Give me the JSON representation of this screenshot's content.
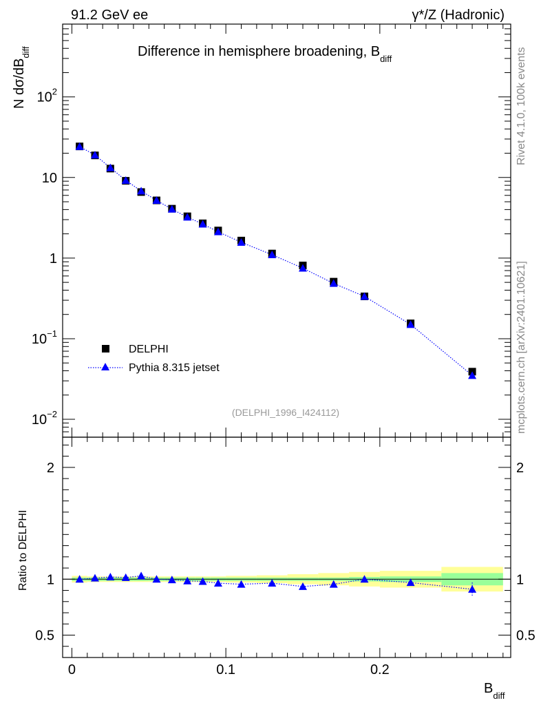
{
  "header": {
    "left": "91.2 GeV ee",
    "right": "γ*/Z (Hadronic)"
  },
  "side_labels": {
    "top": "Rivet 4.1.0,  100k events",
    "bottom": "mcplots.cern.ch [arXiv:2401.10621]"
  },
  "chart_data": [
    {
      "type": "line",
      "title": "Difference in hemisphere broadening, B",
      "title_subscript": "diff",
      "ylabel_prefix": "N  dσ/dB",
      "ylabel_subscript": "diff",
      "yscale": "log",
      "ylim": [
        0.006,
        800
      ],
      "xlim": [
        -0.006,
        0.285
      ],
      "y_ticks": [
        {
          "v": 0.01,
          "base": "10",
          "exp": "−2"
        },
        {
          "v": 0.1,
          "base": "10",
          "exp": "−1"
        },
        {
          "v": 1,
          "base": "1",
          "exp": ""
        },
        {
          "v": 10,
          "base": "10",
          "exp": ""
        },
        {
          "v": 100,
          "base": "10",
          "exp": "2"
        }
      ],
      "watermark": "(DELPHI_1996_I424112)",
      "legend": [
        "DELPHI",
        "Pythia 8.315 jetset"
      ],
      "series": [
        {
          "name": "DELPHI",
          "marker": "square",
          "color": "#000000",
          "x": [
            0.005,
            0.015,
            0.025,
            0.035,
            0.045,
            0.055,
            0.065,
            0.075,
            0.085,
            0.095,
            0.11,
            0.13,
            0.15,
            0.17,
            0.19,
            0.22,
            0.26
          ],
          "y": [
            24.3,
            18.8,
            12.9,
            9.1,
            6.6,
            5.2,
            4.1,
            3.3,
            2.7,
            2.2,
            1.65,
            1.14,
            0.81,
            0.51,
            0.335,
            0.155,
            0.039
          ]
        },
        {
          "name": "Pythia 8.315 jetset",
          "marker": "triangle",
          "color": "#0000ff",
          "x": [
            0.005,
            0.015,
            0.025,
            0.035,
            0.045,
            0.055,
            0.065,
            0.075,
            0.085,
            0.095,
            0.11,
            0.13,
            0.15,
            0.17,
            0.19,
            0.22,
            0.26
          ],
          "y": [
            24.2,
            19.0,
            13.2,
            9.2,
            6.8,
            5.2,
            4.05,
            3.22,
            2.64,
            2.12,
            1.57,
            1.1,
            0.75,
            0.485,
            0.335,
            0.15,
            0.035
          ]
        }
      ]
    },
    {
      "type": "line",
      "ylabel": "Ratio to DELPHI",
      "xlabel": "B",
      "xlabel_subscript": "diff",
      "ylim": [
        0.3,
        2.27
      ],
      "xlim": [
        -0.006,
        0.285
      ],
      "y_ticks": [
        0.5,
        1,
        2
      ],
      "y_tick_labels": [
        "0.5",
        "1",
        "2"
      ],
      "x_ticks": [
        0,
        0.1,
        0.2
      ],
      "x_tick_labels": [
        "0",
        "0.1",
        "0.2"
      ],
      "bin_edges": [
        0,
        0.01,
        0.02,
        0.03,
        0.04,
        0.05,
        0.06,
        0.07,
        0.08,
        0.09,
        0.1,
        0.12,
        0.14,
        0.16,
        0.18,
        0.2,
        0.24,
        0.28
      ],
      "band_inner": [
        0.015,
        0.015,
        0.015,
        0.015,
        0.015,
        0.015,
        0.015,
        0.015,
        0.015,
        0.015,
        0.015,
        0.015,
        0.015,
        0.015,
        0.02,
        0.025,
        0.055
      ],
      "band_outer": [
        0.03,
        0.025,
        0.025,
        0.025,
        0.025,
        0.025,
        0.025,
        0.025,
        0.025,
        0.025,
        0.03,
        0.035,
        0.045,
        0.055,
        0.065,
        0.075,
        0.11
      ],
      "series": [
        {
          "name": "Pythia 8.315 jetset",
          "marker": "triangle",
          "color": "#0000ff",
          "x": [
            0.005,
            0.015,
            0.025,
            0.035,
            0.045,
            0.055,
            0.065,
            0.075,
            0.085,
            0.095,
            0.11,
            0.13,
            0.15,
            0.17,
            0.19,
            0.22,
            0.26
          ],
          "y": [
            1.0,
            1.01,
            1.02,
            1.015,
            1.03,
            1.0,
            0.995,
            0.985,
            0.98,
            0.965,
            0.955,
            0.965,
            0.935,
            0.955,
            1.0,
            0.97,
            0.91
          ],
          "err": [
            0.005,
            0.005,
            0.005,
            0.005,
            0.005,
            0.005,
            0.005,
            0.005,
            0.005,
            0.005,
            0.005,
            0.005,
            0.007,
            0.008,
            0.01,
            0.015,
            0.06
          ]
        }
      ]
    }
  ]
}
